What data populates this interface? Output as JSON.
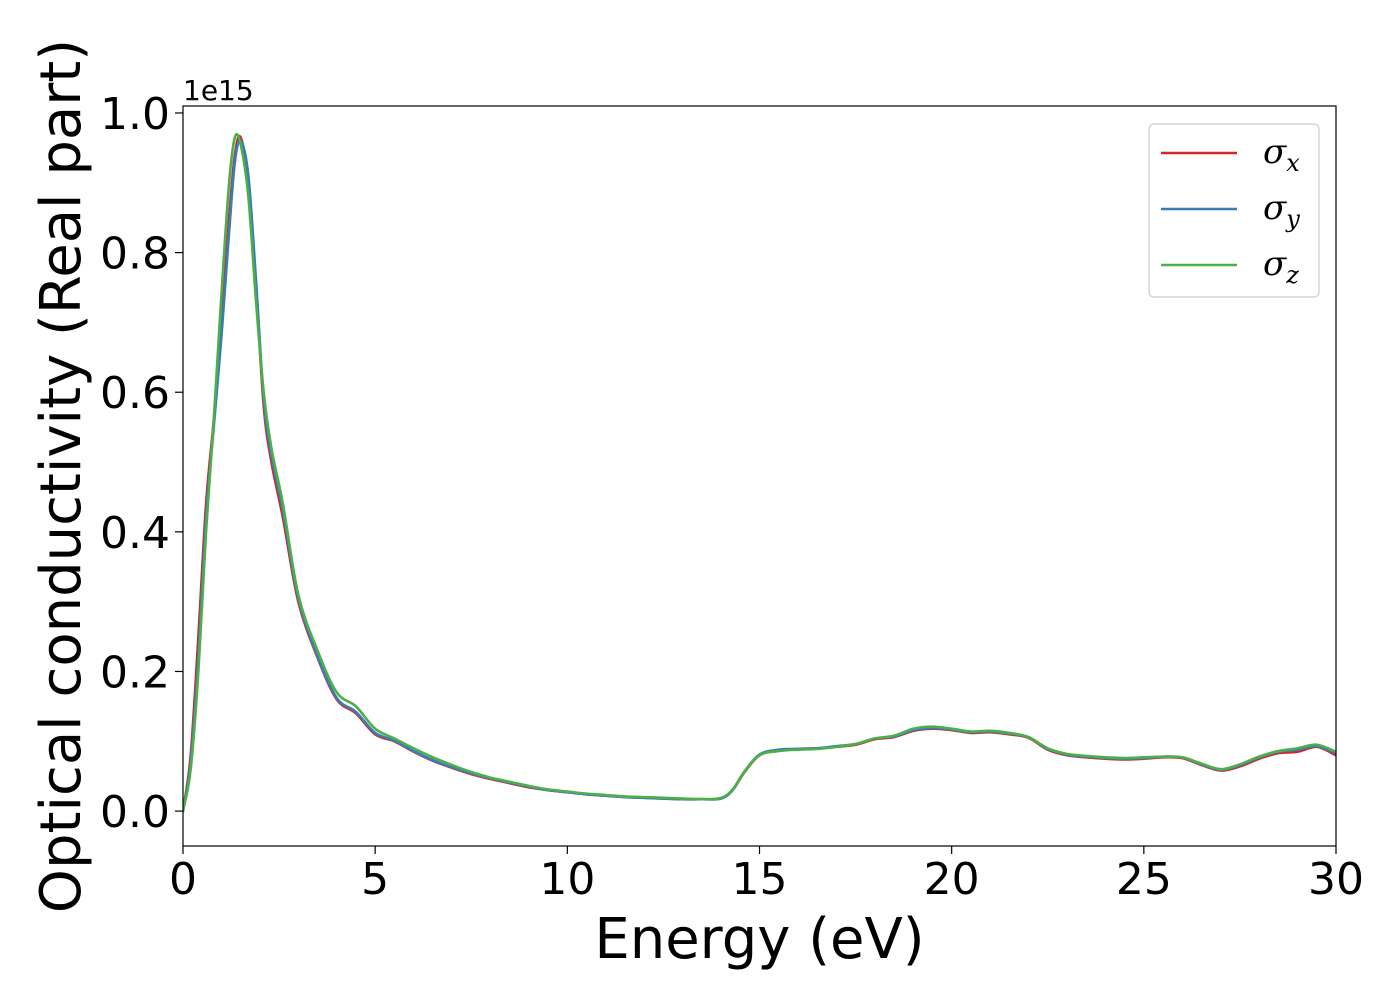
{
  "chart_data": {
    "type": "line",
    "title": "",
    "xlabel": "Energy (eV)",
    "ylabel": "Optical conductivity (Real part)",
    "y_offset_label": "1e15",
    "xlim": [
      0,
      30
    ],
    "ylim": [
      -0.05,
      1.01
    ],
    "xticks": [
      0,
      5,
      10,
      15,
      20,
      25,
      30
    ],
    "yticks": [
      0.0,
      0.2,
      0.4,
      0.6,
      0.8,
      1.0
    ],
    "xtick_labels": [
      "0",
      "5",
      "10",
      "15",
      "20",
      "25",
      "30"
    ],
    "ytick_labels": [
      "0.0",
      "0.2",
      "0.4",
      "0.6",
      "0.8",
      "1.0"
    ],
    "grid": false,
    "legend_position": "top-right",
    "x": [
      0,
      0.2,
      0.4,
      0.6,
      0.8,
      1.0,
      1.2,
      1.35,
      1.5,
      1.7,
      1.9,
      2.1,
      2.3,
      2.6,
      3.0,
      3.5,
      4.0,
      4.5,
      5.0,
      5.5,
      6.0,
      6.5,
      7.0,
      7.5,
      8.0,
      8.5,
      9.0,
      9.5,
      10.0,
      10.5,
      11.0,
      11.5,
      12.0,
      12.5,
      13.0,
      13.5,
      14.0,
      14.3,
      14.6,
      15.0,
      15.5,
      16.0,
      16.5,
      17.0,
      17.5,
      18.0,
      18.5,
      19.0,
      19.5,
      20.0,
      20.5,
      21.0,
      21.5,
      22.0,
      22.5,
      23.0,
      23.5,
      24.0,
      24.5,
      25.0,
      25.5,
      26.0,
      26.5,
      27.0,
      27.5,
      28.0,
      28.5,
      29.0,
      29.5,
      30.0
    ],
    "series": [
      {
        "name": "σx",
        "label_base": "σ",
        "label_sub": "x",
        "color": "#d62728",
        "values": [
          0.0,
          0.08,
          0.25,
          0.44,
          0.56,
          0.7,
          0.85,
          0.94,
          0.965,
          0.9,
          0.75,
          0.58,
          0.5,
          0.42,
          0.3,
          0.22,
          0.16,
          0.14,
          0.11,
          0.1,
          0.085,
          0.072,
          0.062,
          0.053,
          0.046,
          0.04,
          0.034,
          0.03,
          0.027,
          0.024,
          0.022,
          0.02,
          0.019,
          0.018,
          0.017,
          0.017,
          0.018,
          0.03,
          0.055,
          0.08,
          0.087,
          0.089,
          0.09,
          0.092,
          0.095,
          0.103,
          0.106,
          0.115,
          0.118,
          0.116,
          0.112,
          0.113,
          0.11,
          0.105,
          0.088,
          0.08,
          0.077,
          0.075,
          0.074,
          0.075,
          0.077,
          0.076,
          0.066,
          0.058,
          0.064,
          0.075,
          0.083,
          0.085,
          0.092,
          0.08
        ]
      },
      {
        "name": "σy",
        "label_base": "σ",
        "label_sub": "y",
        "color": "#377eb8",
        "values": [
          0.0,
          0.07,
          0.22,
          0.42,
          0.55,
          0.68,
          0.83,
          0.93,
          0.96,
          0.91,
          0.76,
          0.59,
          0.51,
          0.43,
          0.305,
          0.222,
          0.162,
          0.142,
          0.112,
          0.101,
          0.086,
          0.073,
          0.063,
          0.054,
          0.047,
          0.041,
          0.035,
          0.03,
          0.027,
          0.024,
          0.022,
          0.02,
          0.019,
          0.018,
          0.017,
          0.017,
          0.018,
          0.03,
          0.056,
          0.081,
          0.088,
          0.089,
          0.09,
          0.093,
          0.096,
          0.104,
          0.107,
          0.116,
          0.119,
          0.117,
          0.113,
          0.114,
          0.111,
          0.106,
          0.089,
          0.081,
          0.078,
          0.076,
          0.075,
          0.076,
          0.078,
          0.077,
          0.067,
          0.059,
          0.066,
          0.077,
          0.085,
          0.088,
          0.093,
          0.083
        ]
      },
      {
        "name": "σz",
        "label_base": "σ",
        "label_sub": "z",
        "color": "#4daf4a",
        "values": [
          0.0,
          0.06,
          0.2,
          0.4,
          0.56,
          0.74,
          0.9,
          0.965,
          0.955,
          0.88,
          0.73,
          0.6,
          0.52,
          0.44,
          0.31,
          0.23,
          0.17,
          0.15,
          0.118,
          0.104,
          0.09,
          0.077,
          0.066,
          0.056,
          0.048,
          0.042,
          0.036,
          0.031,
          0.028,
          0.025,
          0.023,
          0.021,
          0.02,
          0.019,
          0.018,
          0.017,
          0.019,
          0.031,
          0.056,
          0.08,
          0.086,
          0.088,
          0.089,
          0.092,
          0.096,
          0.104,
          0.108,
          0.118,
          0.121,
          0.118,
          0.114,
          0.115,
          0.112,
          0.106,
          0.09,
          0.082,
          0.079,
          0.077,
          0.076,
          0.077,
          0.078,
          0.077,
          0.068,
          0.06,
          0.067,
          0.078,
          0.086,
          0.09,
          0.095,
          0.085
        ]
      }
    ]
  }
}
